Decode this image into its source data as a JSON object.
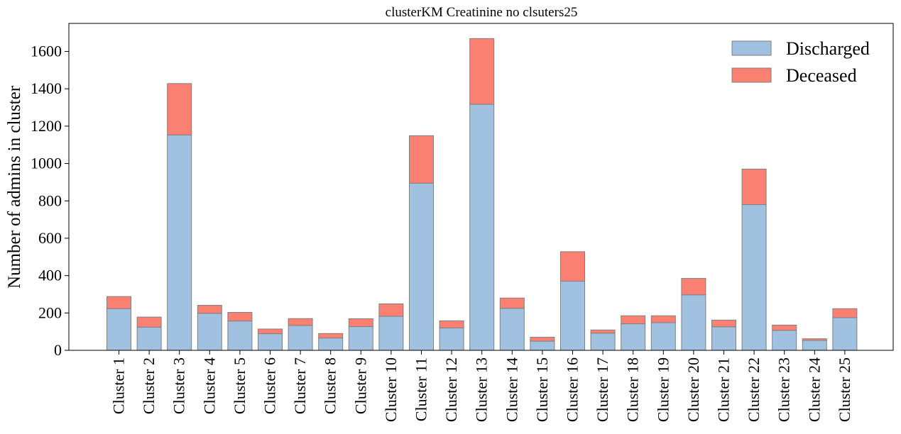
{
  "chart_data": {
    "type": "bar",
    "stacked": true,
    "title": "clusterKM Creatinine no clsuters25",
    "xlabel": "",
    "ylabel": "Number of admins in cluster",
    "ylim": [
      0,
      1750
    ],
    "yticks": [
      0,
      200,
      400,
      600,
      800,
      1000,
      1200,
      1400,
      1600
    ],
    "legend_position": "top-right",
    "grid": false,
    "categories": [
      "Cluster 1",
      "Cluster 2",
      "Cluster 3",
      "Cluster 4",
      "Cluster 5",
      "Cluster 6",
      "Cluster 7",
      "Cluster 8",
      "Cluster 9",
      "Cluster 10",
      "Cluster 11",
      "Cluster 12",
      "Cluster 13",
      "Cluster 14",
      "Cluster 15",
      "Cluster 16",
      "Cluster 17",
      "Cluster 18",
      "Cluster 19",
      "Cluster 20",
      "Cluster 21",
      "Cluster 22",
      "Cluster 23",
      "Cluster 24",
      "Cluster 25"
    ],
    "series": [
      {
        "name": "Discharged",
        "color": "#a0c1e0",
        "values": [
          223,
          124,
          1153,
          198,
          157,
          89,
          133,
          66,
          127,
          182,
          895,
          120,
          1317,
          225,
          49,
          370,
          92,
          142,
          148,
          297,
          126,
          780,
          107,
          53,
          175
        ]
      },
      {
        "name": "Deceased",
        "color": "#fa8072",
        "values": [
          65,
          54,
          275,
          43,
          46,
          25,
          37,
          24,
          42,
          67,
          254,
          38,
          352,
          55,
          21,
          158,
          17,
          43,
          37,
          88,
          36,
          190,
          28,
          9,
          48
        ]
      }
    ]
  }
}
